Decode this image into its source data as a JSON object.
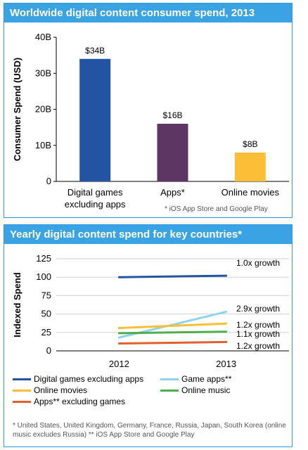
{
  "chart_data": [
    {
      "type": "bar",
      "title": "Worldwide digital content consumer spend, 2013",
      "ylabel": "Consumer Spend (USD)",
      "xlabel": "",
      "ylim": [
        0,
        40
      ],
      "yticks": [
        "0",
        "10B",
        "20B",
        "30B",
        "40B"
      ],
      "categories": [
        "Digital games excluding apps",
        "Apps*",
        "Online movies"
      ],
      "category_lines": [
        [
          "Digital games",
          "excluding apps"
        ],
        [
          "Apps*"
        ],
        [
          "Online movies"
        ]
      ],
      "values": [
        34,
        16,
        8
      ],
      "data_labels": [
        "$34B",
        "$16B",
        "$8B"
      ],
      "colors": [
        "#2254a3",
        "#5e3663",
        "#fbbe36"
      ],
      "footnote": "* iOS App Store and Google Play",
      "grid": false
    },
    {
      "type": "line",
      "title": "Yearly digital content spend for key countries*",
      "ylabel": "Indexed Spend",
      "xlabel": "",
      "x": [
        "2012",
        "2013"
      ],
      "ylim": [
        0,
        125
      ],
      "yticks": [
        "0",
        "25",
        "50",
        "75",
        "100",
        "125"
      ],
      "grid": true,
      "series": [
        {
          "name": "Digital games excluding apps",
          "values": [
            100,
            102
          ],
          "color": "#2254a3",
          "growth": "1.0x growth"
        },
        {
          "name": "Game apps**",
          "values": [
            18,
            53
          ],
          "color": "#8fd4ef",
          "growth": "2.9x growth"
        },
        {
          "name": "Online movies",
          "values": [
            31,
            37
          ],
          "color": "#fbbe36",
          "growth": "1.2x growth"
        },
        {
          "name": "Online music",
          "values": [
            24,
            26
          ],
          "color": "#4cae4c",
          "growth": "1.1x growth"
        },
        {
          "name": "Apps** excluding games",
          "values": [
            10,
            12
          ],
          "color": "#e0612e",
          "growth": "1.2x growth"
        }
      ],
      "legend_placement": "bottom",
      "footnote": "* United States, United Kingdom, Germany, France, Russia, Japan, South Korea (online music excludes Russia) ** iOS App Store and Google Play"
    }
  ]
}
